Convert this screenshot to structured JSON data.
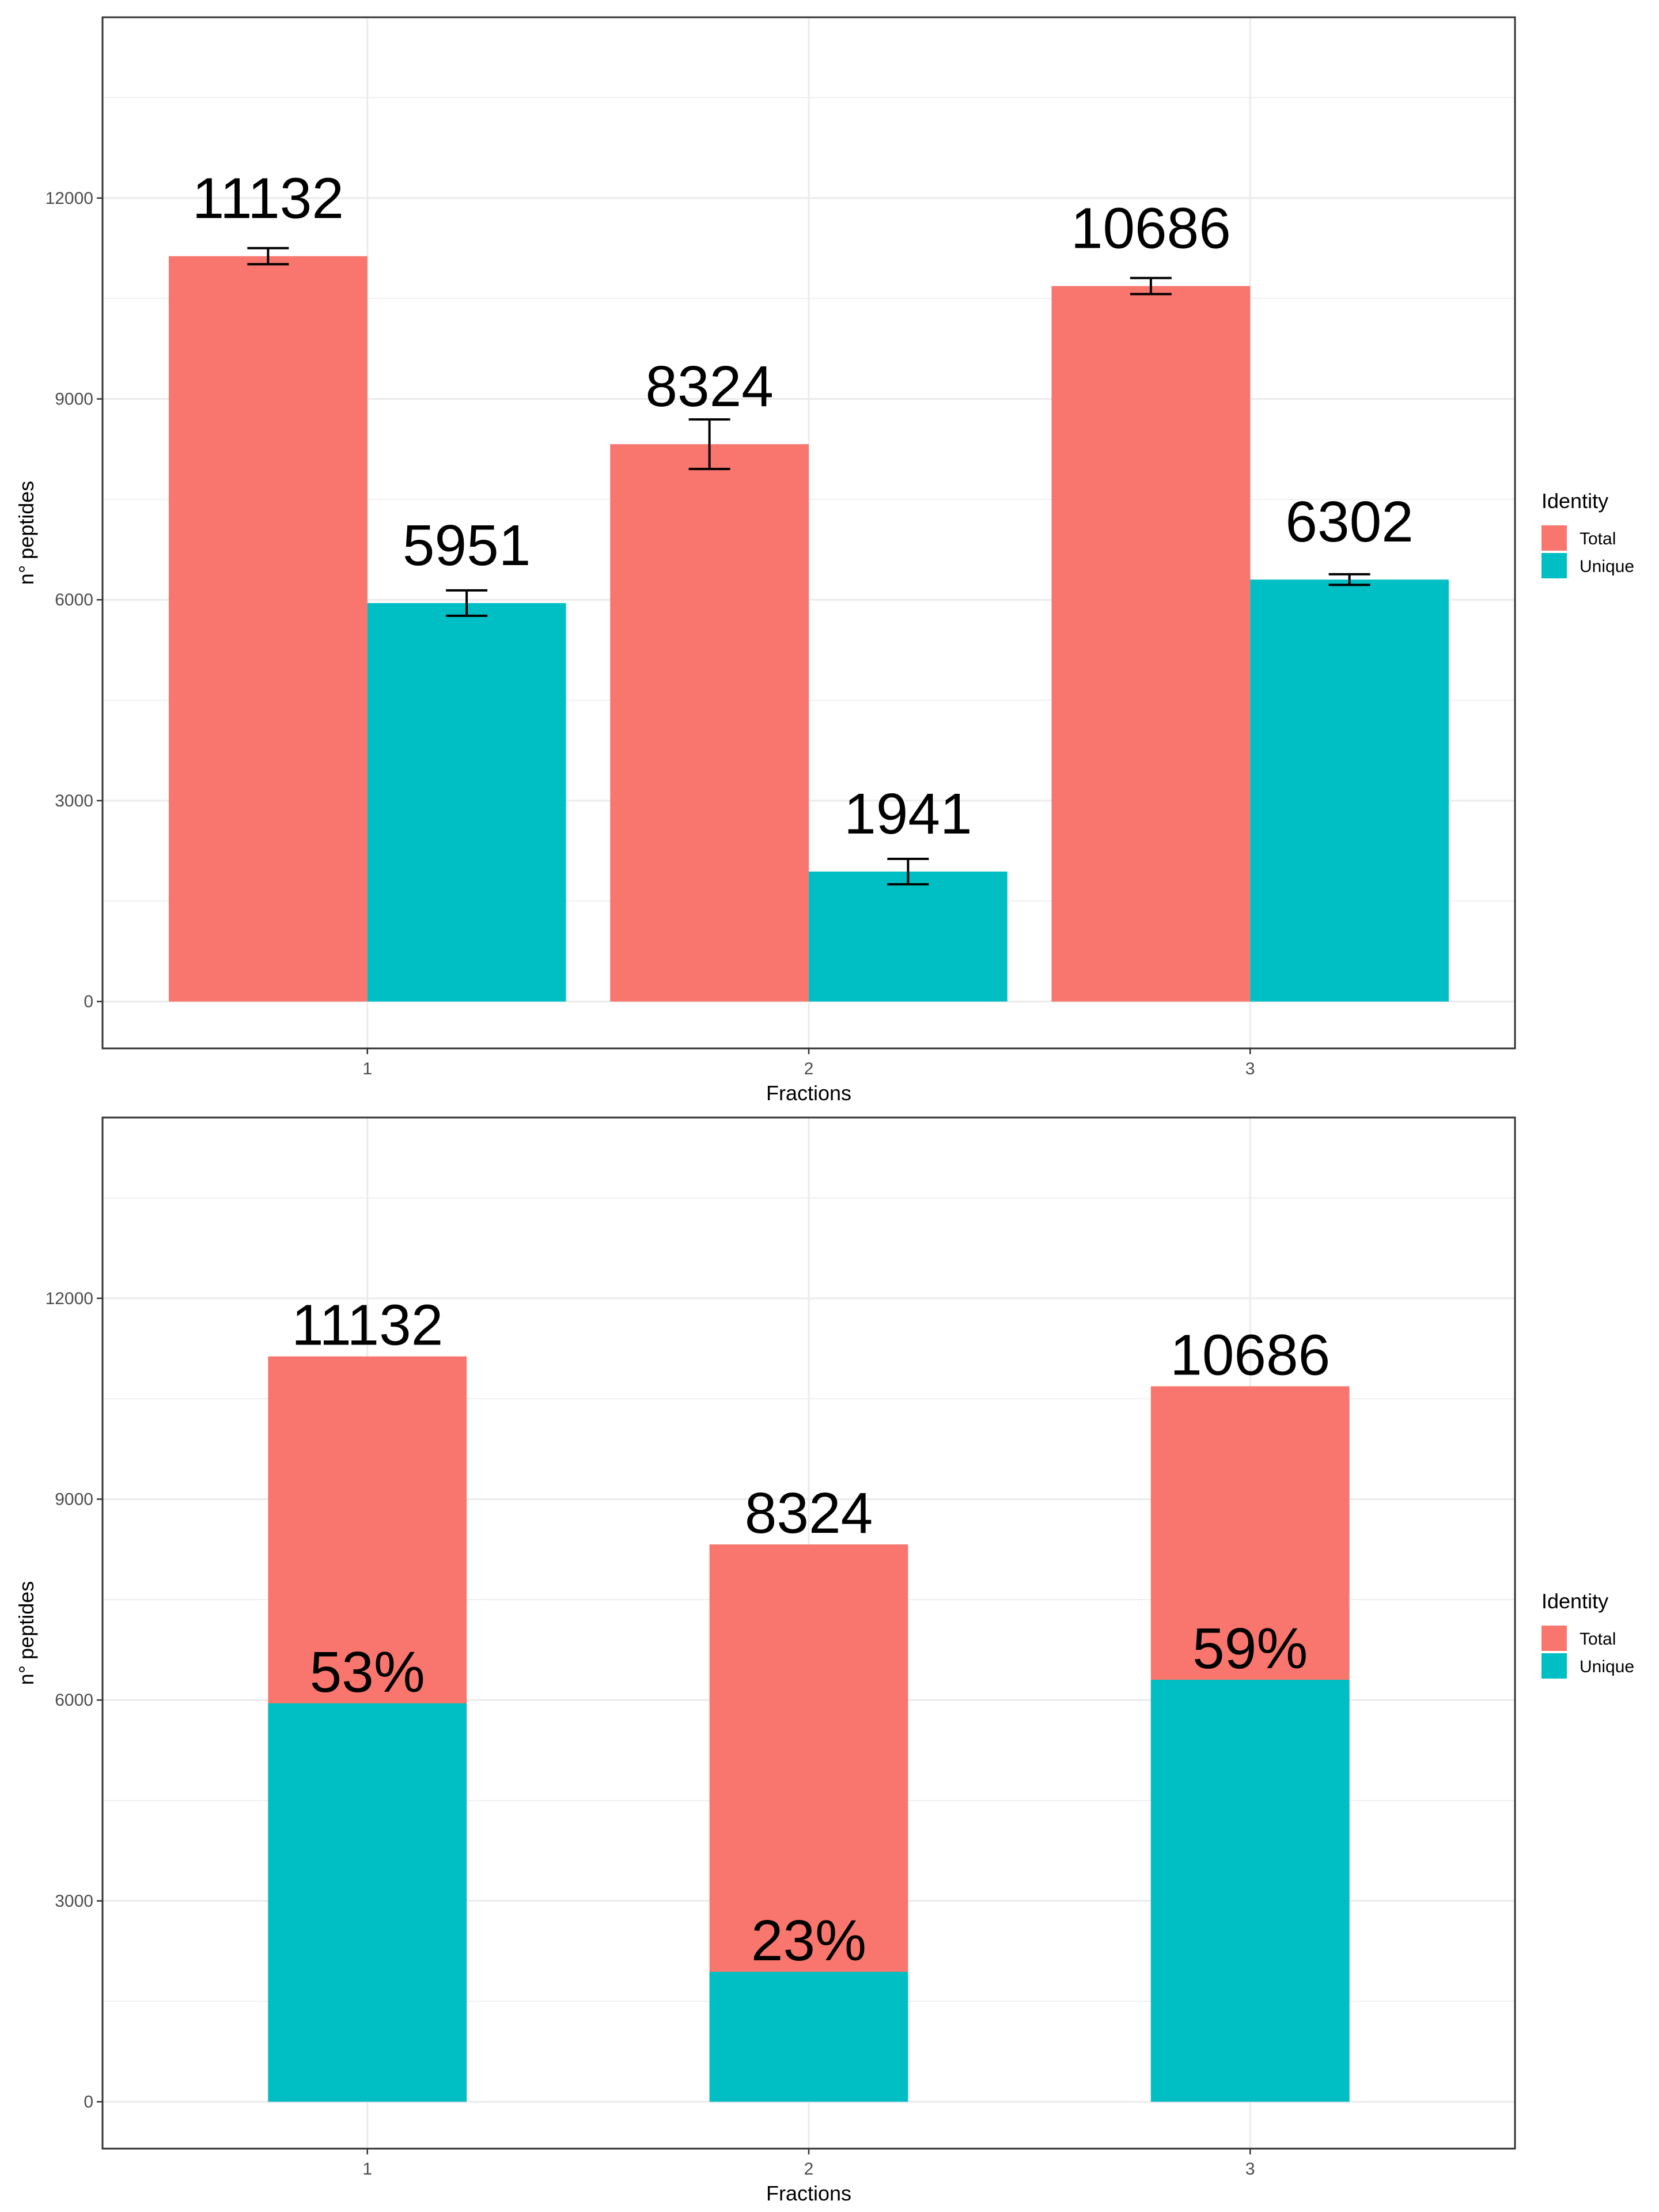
{
  "chart_data": [
    {
      "type": "bar",
      "layout": "dodged",
      "categories": [
        "1",
        "2",
        "3"
      ],
      "series": [
        {
          "name": "Total",
          "values": [
            11132,
            8324,
            10686
          ],
          "error": [
            120,
            370,
            120
          ]
        },
        {
          "name": "Unique",
          "values": [
            5951,
            1941,
            6302
          ],
          "error": [
            190,
            190,
            80
          ]
        }
      ],
      "data_labels": [
        [
          "11132",
          "8324",
          "10686"
        ],
        [
          "5951",
          "1941",
          "6302"
        ]
      ],
      "xlabel": "Fractions",
      "ylabel": "n° peptides",
      "yticks": [
        "0",
        "3000",
        "6000",
        "9000",
        "12000"
      ],
      "ylim": [
        -700,
        14700
      ],
      "grid": true,
      "legend": {
        "title": "Identity",
        "position": "right"
      }
    },
    {
      "type": "bar",
      "layout": "overlaid",
      "categories": [
        "1",
        "2",
        "3"
      ],
      "series": [
        {
          "name": "Total",
          "values": [
            11132,
            8324,
            10686
          ]
        },
        {
          "name": "Unique",
          "values": [
            5951,
            1941,
            6302
          ]
        }
      ],
      "total_labels": [
        "11132",
        "8324",
        "10686"
      ],
      "percent_labels": [
        "53%",
        "23%",
        "59%"
      ],
      "xlabel": "Fractions",
      "ylabel": "n° peptides",
      "yticks": [
        "0",
        "3000",
        "6000",
        "9000",
        "12000"
      ],
      "ylim": [
        -700,
        14700
      ],
      "grid": true,
      "legend": {
        "title": "Identity",
        "position": "right"
      }
    }
  ],
  "colors": {
    "Total": "#F8766D",
    "Unique": "#00BFC4",
    "grid": "#EBEBEB",
    "panel_border": "#333333"
  }
}
